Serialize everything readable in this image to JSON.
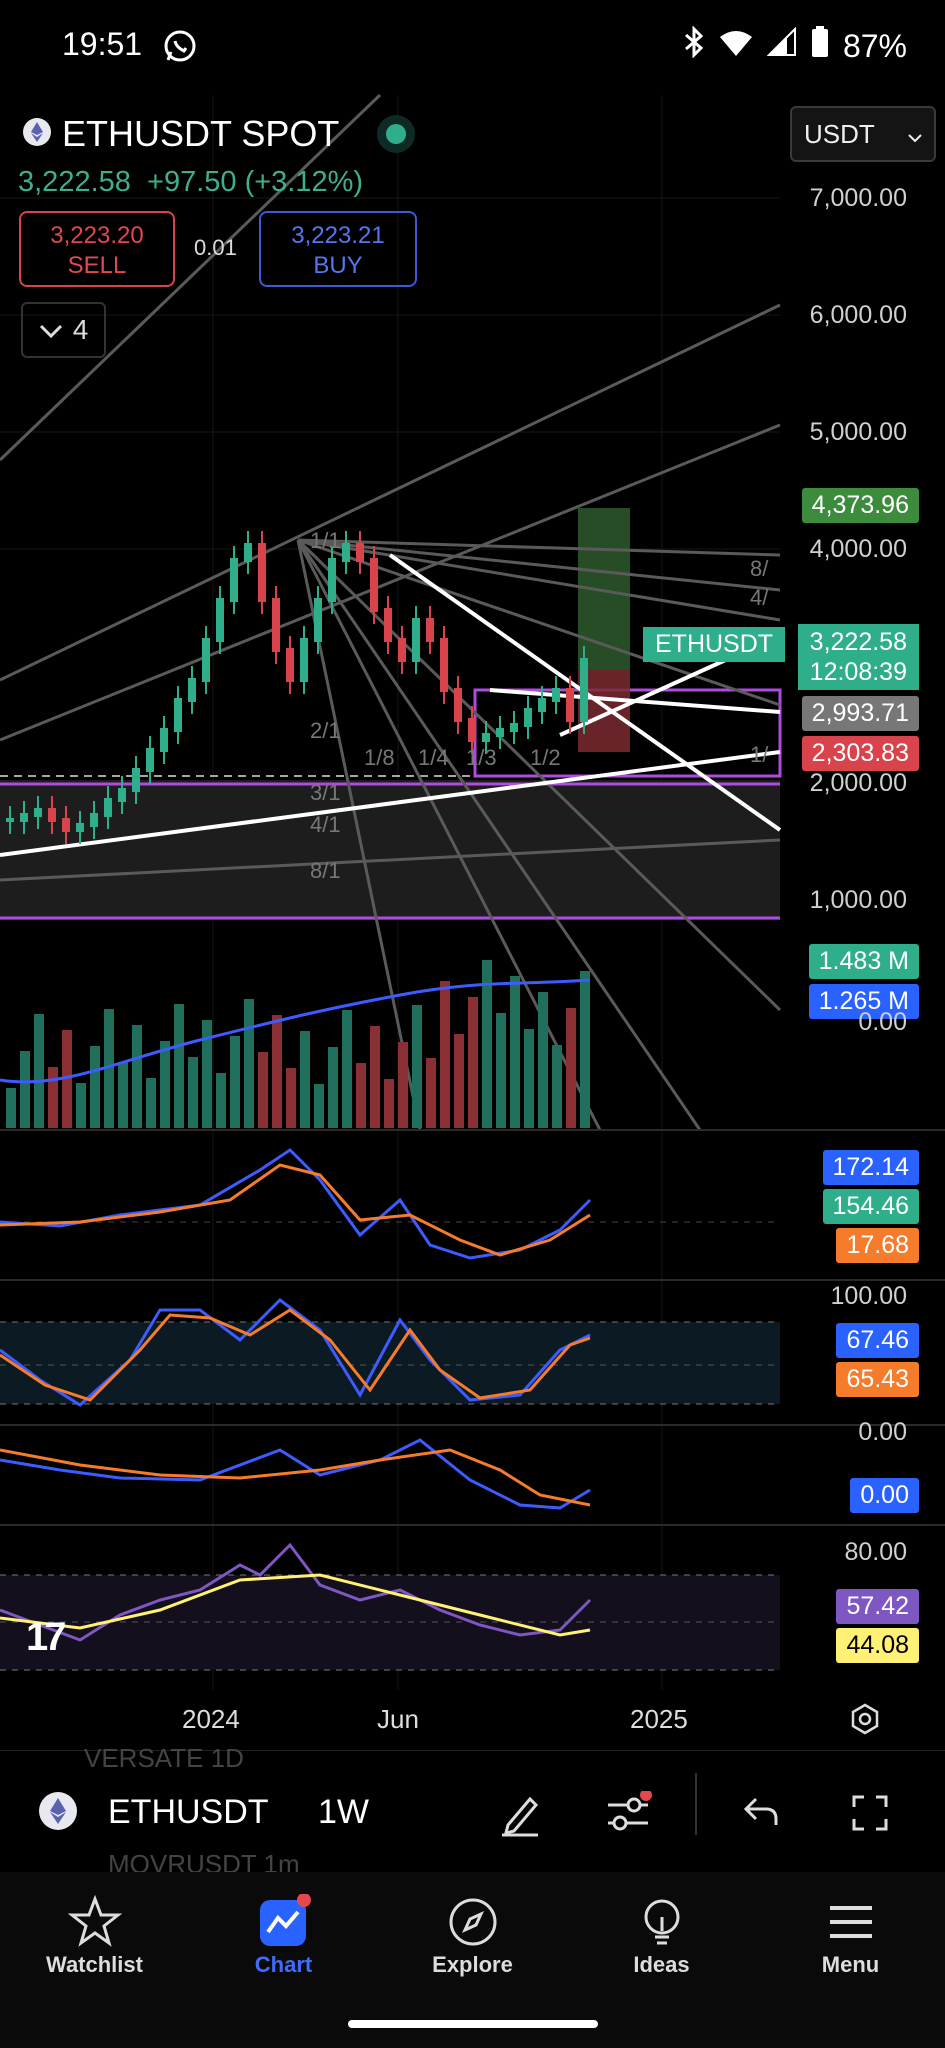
{
  "status_bar": {
    "time": "19:51",
    "battery": "87%"
  },
  "ticker": {
    "symbol_title": "ETHUSDT SPOT",
    "last_price": "3,222.58",
    "change": "+97.50 (+3.12%)"
  },
  "trade": {
    "sell_price": "3,223.20",
    "sell_label": "SELL",
    "spread": "0.01",
    "buy_price": "3,223.21",
    "buy_label": "BUY"
  },
  "indicators_toggle": {
    "count": "4"
  },
  "currency_select": {
    "value": "USDT"
  },
  "price_axis": [
    "7,000.00",
    "6,000.00",
    "5,000.00",
    "4,000.00",
    "2,000.00",
    "1,000.00",
    "0.00"
  ],
  "price_badges": {
    "target": "4,373.96",
    "symbol_tag": "ETHUSDT",
    "current": "3,222.58",
    "countdown": "12:08:39",
    "level1": "2,993.71",
    "level2": "2,303.83"
  },
  "fib_fan_labels": [
    "1/1",
    "2/1",
    "1/8",
    "1/4",
    "1/3",
    "1/2",
    "3/1",
    "4/1",
    "8/1",
    "8/",
    "4/",
    "1/"
  ],
  "volume": {
    "value1": "1.483 M",
    "value2": "1.265 M",
    "axis": "0.00"
  },
  "macd": {
    "value1": "172.14",
    "value2": "154.46",
    "value3": "17.68"
  },
  "stoch": {
    "axis_top": "100.00",
    "k": "67.46",
    "d": "65.43"
  },
  "osc": {
    "axis_top": "0.00",
    "value": "0.00"
  },
  "rsi": {
    "axis_top": "80.00",
    "value": "57.42",
    "ma": "44.08"
  },
  "time_axis": [
    "2024",
    "Jun",
    "2025"
  ],
  "bottom_bar": {
    "symbol": "ETHUSDT",
    "interval": "1W",
    "ghost_top": "VERSATE 1D",
    "ghost_bottom": "MOVRUSDT 1m"
  },
  "nav": [
    {
      "label": "Watchlist",
      "icon": "star-icon"
    },
    {
      "label": "Chart",
      "icon": "chart-icon"
    },
    {
      "label": "Explore",
      "icon": "compass-icon"
    },
    {
      "label": "Ideas",
      "icon": "lightbulb-icon"
    },
    {
      "label": "Menu",
      "icon": "hamburger-icon"
    }
  ],
  "colors": {
    "up": "#2fae8c",
    "down": "#d9434b",
    "accent_blue": "#2962ff",
    "target_green": "#3d8b3d",
    "macd_orange": "#f57c2b",
    "rsi_purple": "#7e57c2",
    "rsi_yellow": "#fff176"
  }
}
